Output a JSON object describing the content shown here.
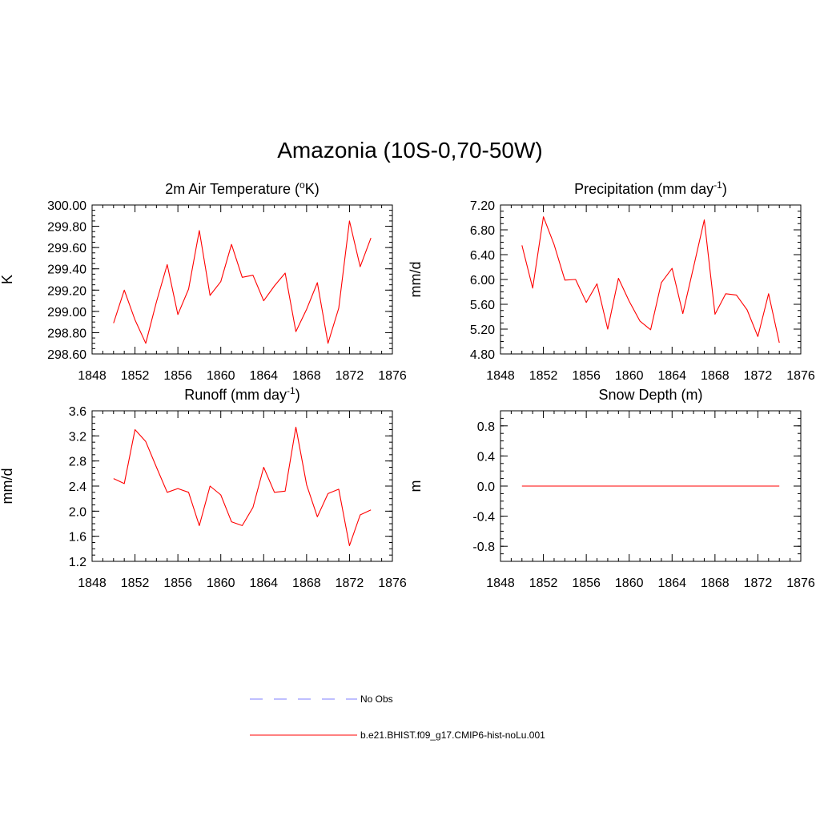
{
  "figure_title": "Amazonia (10S-0,70-50W)",
  "legend": [
    {
      "label": "No Obs",
      "color": "#9999ff",
      "dash": true
    },
    {
      "label": "b.e21.BHIST.f09_g17.CMIP6-hist-noLu.001",
      "color": "#ff0000",
      "dash": false
    }
  ],
  "chart_data": [
    {
      "type": "line",
      "title_parts": [
        "2m Air Temperature (",
        "o",
        "K)"
      ],
      "xlabel": "",
      "ylabel": "K",
      "xlim": [
        1848,
        1876
      ],
      "xticks": [
        1848,
        1852,
        1856,
        1860,
        1864,
        1868,
        1872,
        1876
      ],
      "ylim": [
        298.6,
        300.0
      ],
      "yticks": [
        "298.60",
        "298.80",
        "299.00",
        "299.20",
        "299.40",
        "299.60",
        "299.80",
        "300.00"
      ],
      "series": [
        {
          "color": "#ff0000",
          "x": [
            1850,
            1851,
            1852,
            1853,
            1854,
            1855,
            1856,
            1857,
            1858,
            1859,
            1860,
            1861,
            1862,
            1863,
            1864,
            1865,
            1866,
            1867,
            1868,
            1869,
            1870,
            1871,
            1872,
            1873,
            1874
          ],
          "y": [
            298.89,
            299.2,
            298.92,
            298.7,
            299.09,
            299.44,
            298.97,
            299.21,
            299.76,
            299.15,
            299.28,
            299.63,
            299.32,
            299.34,
            299.1,
            299.24,
            299.36,
            298.81,
            299.02,
            299.27,
            298.7,
            299.03,
            299.85,
            299.42,
            299.69
          ]
        }
      ]
    },
    {
      "type": "line",
      "title_parts": [
        "Precipitation (mm day",
        "-1",
        ")"
      ],
      "xlabel": "",
      "ylabel": "mm/d",
      "xlim": [
        1848,
        1876
      ],
      "xticks": [
        1848,
        1852,
        1856,
        1860,
        1864,
        1868,
        1872,
        1876
      ],
      "ylim": [
        4.8,
        7.2
      ],
      "yticks": [
        "4.80",
        "5.20",
        "5.60",
        "6.00",
        "6.40",
        "6.80",
        "7.20"
      ],
      "series": [
        {
          "color": "#ff0000",
          "x": [
            1850,
            1851,
            1852,
            1853,
            1854,
            1855,
            1856,
            1857,
            1858,
            1859,
            1860,
            1861,
            1862,
            1863,
            1864,
            1865,
            1866,
            1867,
            1868,
            1869,
            1870,
            1871,
            1872,
            1873,
            1874
          ],
          "y": [
            6.55,
            5.86,
            7.01,
            6.56,
            5.99,
            6.0,
            5.63,
            5.93,
            5.2,
            6.02,
            5.65,
            5.33,
            5.19,
            5.95,
            6.18,
            5.45,
            6.2,
            6.96,
            5.44,
            5.77,
            5.75,
            5.51,
            5.08,
            5.77,
            4.98
          ]
        }
      ]
    },
    {
      "type": "line",
      "title_parts": [
        "Runoff (mm day",
        "-1",
        ")"
      ],
      "xlabel": "",
      "ylabel": "mm/d",
      "xlim": [
        1848,
        1876
      ],
      "xticks": [
        1848,
        1852,
        1856,
        1860,
        1864,
        1868,
        1872,
        1876
      ],
      "ylim": [
        1.2,
        3.6
      ],
      "yticks": [
        "1.2",
        "1.6",
        "2.0",
        "2.4",
        "2.8",
        "3.2",
        "3.6"
      ],
      "series": [
        {
          "color": "#ff0000",
          "x": [
            1850,
            1851,
            1852,
            1853,
            1854,
            1855,
            1856,
            1857,
            1858,
            1859,
            1860,
            1861,
            1862,
            1863,
            1864,
            1865,
            1866,
            1867,
            1868,
            1869,
            1870,
            1871,
            1872,
            1873,
            1874
          ],
          "y": [
            2.52,
            2.44,
            3.3,
            3.11,
            2.7,
            2.3,
            2.36,
            2.3,
            1.77,
            2.4,
            2.26,
            1.83,
            1.77,
            2.06,
            2.7,
            2.3,
            2.32,
            3.34,
            2.42,
            1.91,
            2.28,
            2.35,
            1.45,
            1.94,
            2.02
          ]
        }
      ]
    },
    {
      "type": "line",
      "title_parts": [
        "Snow Depth (m)"
      ],
      "xlabel": "",
      "ylabel": "m",
      "xlim": [
        1848,
        1876
      ],
      "xticks": [
        1848,
        1852,
        1856,
        1860,
        1864,
        1868,
        1872,
        1876
      ],
      "ylim": [
        -1.0,
        1.0
      ],
      "yticks": [
        "-0.8",
        "-0.4",
        "0.0",
        "0.4",
        "0.8"
      ],
      "series": [
        {
          "color": "#ff0000",
          "x": [
            1850,
            1874
          ],
          "y": [
            0.0,
            0.0
          ]
        }
      ]
    }
  ]
}
